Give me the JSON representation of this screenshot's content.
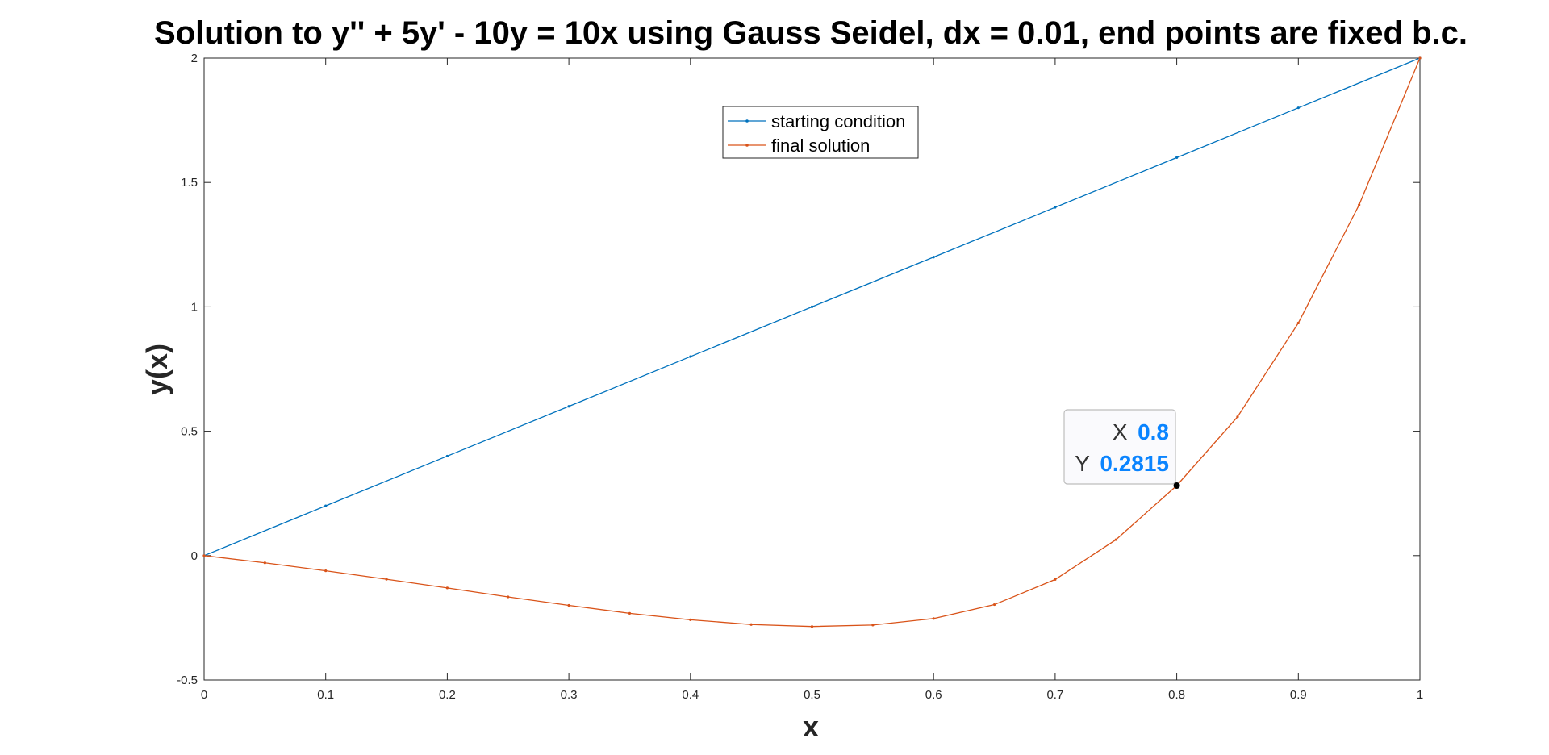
{
  "chart_data": {
    "type": "line",
    "title": "Solution to y'' + 5y' - 10y = 10x using Gauss Seidel, dx = 0.01, end points are fixed b.c.",
    "xlabel": "x",
    "ylabel": "y(x)",
    "xlim": [
      0,
      1
    ],
    "ylim": [
      -0.5,
      2
    ],
    "xticks": [
      "0",
      "0.1",
      "0.2",
      "0.3",
      "0.4",
      "0.5",
      "0.6",
      "0.7",
      "0.8",
      "0.9",
      "1"
    ],
    "yticks": [
      "-0.5",
      "0",
      "0.5",
      "1",
      "1.5",
      "2"
    ],
    "grid": false,
    "legend_position": "top-center",
    "series": [
      {
        "name": "starting condition",
        "color": "#0072BD",
        "x": [
          0,
          0.1,
          0.2,
          0.3,
          0.4,
          0.5,
          0.6,
          0.7,
          0.8,
          0.9,
          1.0
        ],
        "y": [
          0,
          0.2,
          0.4,
          0.6,
          0.8,
          1.0,
          1.2,
          1.4,
          1.6,
          1.8,
          2.0
        ]
      },
      {
        "name": "final solution",
        "color": "#D95319",
        "x": [
          0,
          0.05,
          0.1,
          0.15,
          0.2,
          0.25,
          0.3,
          0.35,
          0.4,
          0.45,
          0.5,
          0.55,
          0.6,
          0.65,
          0.7,
          0.75,
          0.8,
          0.85,
          0.9,
          0.95,
          1.0
        ],
        "y": [
          0,
          -0.029,
          -0.061,
          -0.095,
          -0.13,
          -0.166,
          -0.2,
          -0.232,
          -0.258,
          -0.277,
          -0.285,
          -0.279,
          -0.253,
          -0.197,
          -0.096,
          0.064,
          0.2815,
          0.558,
          0.935,
          1.41,
          2.0
        ]
      }
    ],
    "datatip": {
      "x_key": "X",
      "x_value": "0.8",
      "y_key": "Y",
      "y_value": "0.2815",
      "point": [
        0.8,
        0.2815
      ]
    }
  }
}
